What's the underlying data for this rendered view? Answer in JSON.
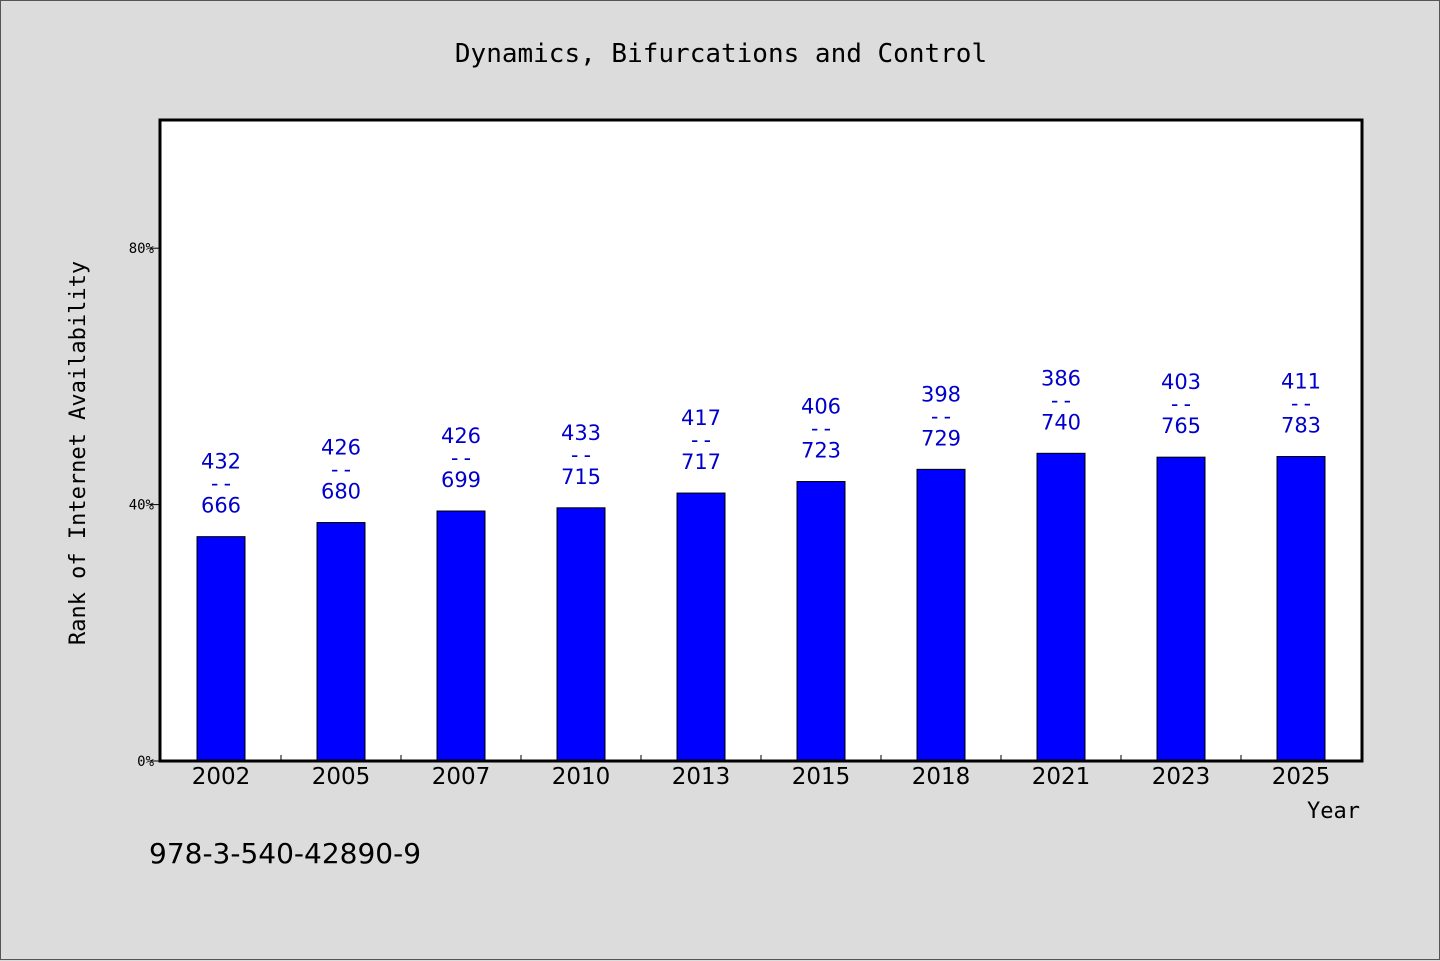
{
  "chart_data": {
    "type": "bar",
    "title": "Dynamics, Bifurcations and Control",
    "xlabel": "Year",
    "ylabel": "Rank of Internet Availability",
    "categories": [
      "2002",
      "2005",
      "2007",
      "2010",
      "2013",
      "2015",
      "2018",
      "2021",
      "2023",
      "2025"
    ],
    "values": [
      35,
      37.2,
      39,
      39.5,
      41.8,
      43.6,
      45.5,
      48,
      47.4,
      47.5
    ],
    "bar_labels": [
      {
        "top": "432",
        "sep": "--",
        "bottom": "666"
      },
      {
        "top": "426",
        "sep": "--",
        "bottom": "680"
      },
      {
        "top": "426",
        "sep": "--",
        "bottom": "699"
      },
      {
        "top": "433",
        "sep": "--",
        "bottom": "715"
      },
      {
        "top": "417",
        "sep": "--",
        "bottom": "717"
      },
      {
        "top": "406",
        "sep": "--",
        "bottom": "723"
      },
      {
        "top": "398",
        "sep": "--",
        "bottom": "729"
      },
      {
        "top": "386",
        "sep": "--",
        "bottom": "740"
      },
      {
        "top": "403",
        "sep": "--",
        "bottom": "765"
      },
      {
        "top": "411",
        "sep": "--",
        "bottom": "783"
      }
    ],
    "yticks": [
      0,
      40,
      80
    ],
    "ytick_labels": [
      "0%",
      "40%",
      "80%"
    ],
    "ylim": [
      0,
      100
    ],
    "grid": false,
    "bar_color": "#0000ff",
    "label_color": "#0000cc"
  },
  "footer_code": "978-3-540-42890-9"
}
